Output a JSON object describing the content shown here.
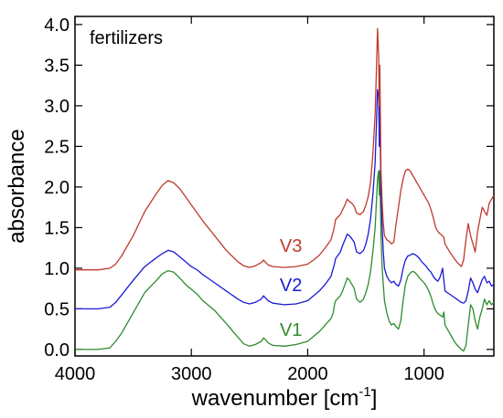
{
  "chart_data": {
    "type": "line",
    "annotation": "fertilizers",
    "xlabel": "wavenumber [cm",
    "xlabel_sup": "-1",
    "xlabel_close": "]",
    "ylabel": "absorbance",
    "xlim": [
      4000,
      400
    ],
    "xscale_reversed": true,
    "ylim": [
      -0.08,
      4.1
    ],
    "grid": false,
    "x_ticks": [
      "4000",
      "3000",
      "2000",
      "1000"
    ],
    "x_tick_values": [
      4000,
      3000,
      2000,
      1000
    ],
    "y_ticks": [
      "0.0",
      "0.5",
      "1.0",
      "1.5",
      "2.0",
      "2.5",
      "3.0",
      "3.5",
      "4.0"
    ],
    "y_tick_values": [
      0.0,
      0.5,
      1.0,
      1.5,
      2.0,
      2.5,
      3.0,
      3.5,
      4.0
    ],
    "series": [
      {
        "name": "V1",
        "color": "#2e8b2e",
        "label_at": [
          2240,
          0.17
        ],
        "x": [
          4000,
          3800,
          3700,
          3650,
          3600,
          3500,
          3400,
          3300,
          3250,
          3200,
          3150,
          3100,
          3050,
          3000,
          2950,
          2900,
          2800,
          2700,
          2600,
          2550,
          2500,
          2450,
          2400,
          2380,
          2360,
          2340,
          2300,
          2200,
          2100,
          2000,
          1950,
          1900,
          1850,
          1800,
          1780,
          1770,
          1760,
          1720,
          1700,
          1680,
          1660,
          1640,
          1620,
          1600,
          1580,
          1550,
          1520,
          1500,
          1480,
          1460,
          1440,
          1420,
          1410,
          1400,
          1390,
          1385,
          1380,
          1375,
          1370,
          1360,
          1350,
          1340,
          1320,
          1300,
          1280,
          1260,
          1240,
          1220,
          1200,
          1180,
          1160,
          1140,
          1120,
          1100,
          1080,
          1060,
          1040,
          1020,
          1000,
          980,
          960,
          940,
          920,
          900,
          880,
          860,
          840,
          830,
          820,
          800,
          780,
          760,
          740,
          720,
          700,
          680,
          660,
          640,
          620,
          600,
          580,
          560,
          540,
          520,
          500,
          480,
          460,
          440,
          420,
          400
        ],
        "y": [
          0.0,
          0.0,
          0.02,
          0.1,
          0.2,
          0.45,
          0.7,
          0.85,
          0.93,
          0.97,
          0.95,
          0.88,
          0.8,
          0.74,
          0.68,
          0.6,
          0.48,
          0.32,
          0.15,
          0.07,
          0.04,
          0.06,
          0.1,
          0.14,
          0.12,
          0.08,
          0.05,
          0.04,
          0.06,
          0.1,
          0.16,
          0.22,
          0.3,
          0.38,
          0.45,
          0.55,
          0.6,
          0.66,
          0.72,
          0.8,
          0.88,
          0.85,
          0.8,
          0.75,
          0.62,
          0.58,
          0.62,
          0.7,
          0.8,
          0.95,
          1.2,
          1.5,
          1.8,
          2.1,
          2.2,
          1.9,
          2.2,
          1.8,
          1.4,
          1.0,
          0.8,
          0.6,
          0.45,
          0.35,
          0.3,
          0.32,
          0.28,
          0.25,
          0.35,
          0.6,
          0.8,
          0.9,
          0.94,
          0.96,
          0.95,
          0.92,
          0.88,
          0.85,
          0.82,
          0.78,
          0.72,
          0.65,
          0.55,
          0.48,
          0.44,
          0.42,
          0.4,
          0.46,
          0.3,
          0.25,
          0.2,
          0.15,
          0.1,
          0.06,
          0.03,
          0.0,
          -0.02,
          0.05,
          0.3,
          0.55,
          0.5,
          0.35,
          0.25,
          0.4,
          0.5,
          0.62,
          0.55,
          0.6,
          0.55,
          0.58
        ]
      },
      {
        "name": "V2",
        "color": "#1a1ad6",
        "label_at": [
          2240,
          0.72
        ],
        "x": [
          4000,
          3800,
          3700,
          3650,
          3600,
          3500,
          3400,
          3300,
          3250,
          3200,
          3150,
          3100,
          3050,
          3000,
          2950,
          2900,
          2800,
          2700,
          2600,
          2550,
          2500,
          2450,
          2400,
          2380,
          2360,
          2340,
          2300,
          2200,
          2100,
          2000,
          1950,
          1900,
          1850,
          1800,
          1780,
          1770,
          1760,
          1720,
          1700,
          1680,
          1660,
          1640,
          1620,
          1600,
          1580,
          1550,
          1520,
          1500,
          1480,
          1460,
          1440,
          1420,
          1410,
          1400,
          1390,
          1385,
          1380,
          1375,
          1370,
          1360,
          1350,
          1340,
          1320,
          1300,
          1280,
          1260,
          1240,
          1220,
          1200,
          1180,
          1160,
          1140,
          1120,
          1100,
          1080,
          1060,
          1040,
          1020,
          1000,
          980,
          960,
          940,
          920,
          900,
          880,
          860,
          840,
          830,
          820,
          800,
          780,
          760,
          740,
          720,
          700,
          680,
          660,
          640,
          620,
          600,
          580,
          560,
          540,
          520,
          500,
          480,
          460,
          440,
          420,
          400
        ],
        "y": [
          0.5,
          0.5,
          0.52,
          0.58,
          0.67,
          0.85,
          1.02,
          1.13,
          1.18,
          1.22,
          1.2,
          1.14,
          1.08,
          1.02,
          0.98,
          0.92,
          0.82,
          0.72,
          0.62,
          0.58,
          0.56,
          0.58,
          0.62,
          0.66,
          0.63,
          0.6,
          0.57,
          0.55,
          0.56,
          0.6,
          0.66,
          0.72,
          0.8,
          0.9,
          1.0,
          1.05,
          1.12,
          1.2,
          1.28,
          1.35,
          1.42,
          1.4,
          1.36,
          1.32,
          1.2,
          1.18,
          1.22,
          1.3,
          1.42,
          1.6,
          1.9,
          2.3,
          2.75,
          3.2,
          3.1,
          2.5,
          3.0,
          2.4,
          1.9,
          1.5,
          1.2,
          1.0,
          0.9,
          0.85,
          0.82,
          0.84,
          0.8,
          0.78,
          0.85,
          1.0,
          1.1,
          1.15,
          1.16,
          1.18,
          1.17,
          1.15,
          1.12,
          1.08,
          1.05,
          1.02,
          0.98,
          0.95,
          0.9,
          0.86,
          0.84,
          0.9,
          1.0,
          0.85,
          0.72,
          0.7,
          0.68,
          0.66,
          0.64,
          0.62,
          0.6,
          0.58,
          0.57,
          0.6,
          0.72,
          0.88,
          0.82,
          0.74,
          0.7,
          0.78,
          0.86,
          0.9,
          0.82,
          0.84,
          0.78,
          0.8
        ]
      },
      {
        "name": "V3",
        "color": "#c0392b",
        "label_at": [
          2240,
          1.2
        ],
        "x": [
          4000,
          3800,
          3700,
          3650,
          3600,
          3500,
          3400,
          3300,
          3250,
          3200,
          3150,
          3100,
          3050,
          3000,
          2950,
          2900,
          2800,
          2700,
          2600,
          2550,
          2500,
          2450,
          2400,
          2380,
          2360,
          2340,
          2300,
          2200,
          2100,
          2000,
          1950,
          1900,
          1850,
          1800,
          1780,
          1770,
          1760,
          1720,
          1700,
          1680,
          1660,
          1640,
          1620,
          1600,
          1580,
          1550,
          1520,
          1500,
          1480,
          1460,
          1440,
          1420,
          1410,
          1400,
          1390,
          1385,
          1380,
          1375,
          1370,
          1360,
          1350,
          1340,
          1320,
          1300,
          1280,
          1260,
          1240,
          1220,
          1200,
          1180,
          1160,
          1140,
          1120,
          1100,
          1080,
          1060,
          1040,
          1020,
          1000,
          980,
          960,
          940,
          920,
          900,
          880,
          860,
          840,
          830,
          820,
          800,
          780,
          760,
          740,
          720,
          700,
          680,
          660,
          640,
          620,
          600,
          580,
          560,
          540,
          520,
          500,
          480,
          460,
          440,
          420,
          400
        ],
        "y": [
          0.98,
          0.98,
          1.0,
          1.05,
          1.15,
          1.4,
          1.7,
          1.92,
          2.02,
          2.08,
          2.05,
          1.98,
          1.88,
          1.78,
          1.68,
          1.58,
          1.4,
          1.22,
          1.08,
          1.03,
          1.01,
          1.03,
          1.07,
          1.1,
          1.07,
          1.04,
          1.02,
          1.01,
          1.02,
          1.05,
          1.1,
          1.16,
          1.25,
          1.35,
          1.45,
          1.52,
          1.6,
          1.66,
          1.72,
          1.78,
          1.85,
          1.82,
          1.8,
          1.76,
          1.68,
          1.66,
          1.7,
          1.78,
          1.88,
          2.05,
          2.4,
          2.9,
          3.4,
          3.95,
          3.6,
          3.0,
          3.5,
          2.8,
          2.2,
          1.8,
          1.55,
          1.4,
          1.35,
          1.33,
          1.3,
          1.32,
          1.55,
          1.75,
          1.95,
          2.1,
          2.2,
          2.22,
          2.2,
          2.15,
          2.1,
          2.05,
          2.0,
          1.95,
          1.9,
          1.85,
          1.8,
          1.72,
          1.62,
          1.5,
          1.45,
          1.42,
          1.4,
          1.38,
          1.3,
          1.25,
          1.2,
          1.16,
          1.12,
          1.08,
          1.05,
          1.02,
          1.1,
          1.35,
          1.55,
          1.4,
          1.3,
          1.2,
          1.45,
          1.6,
          1.75,
          1.7,
          1.65,
          1.8,
          1.85,
          1.9
        ]
      }
    ]
  }
}
